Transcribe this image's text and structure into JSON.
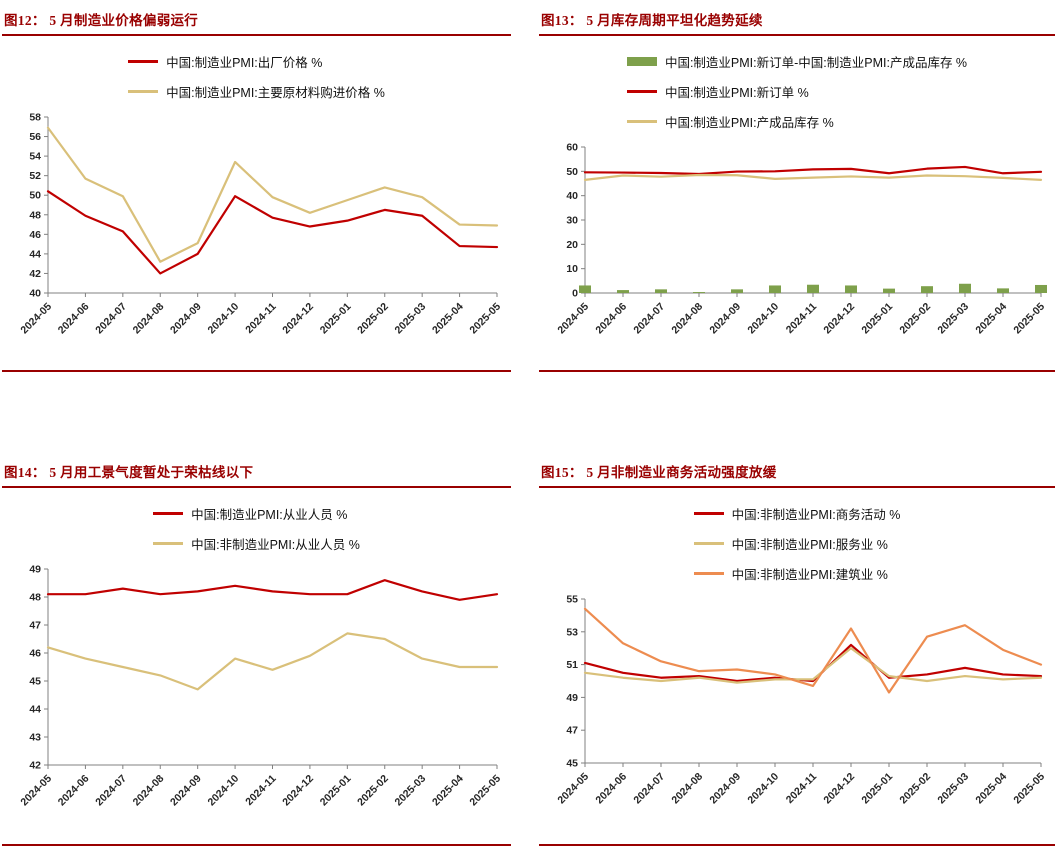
{
  "page": {
    "background": "#ffffff",
    "accent_red": "#990000",
    "axis_color": "#808080"
  },
  "chart_data": [
    {
      "type": "line",
      "title": "图12：  5 月制造业价格偏弱运行",
      "categories": [
        "2024-05",
        "2024-06",
        "2024-07",
        "2024-08",
        "2024-09",
        "2024-10",
        "2024-11",
        "2024-12",
        "2025-01",
        "2025-02",
        "2025-03",
        "2025-04",
        "2025-05"
      ],
      "series": [
        {
          "name": "中国:制造业PMI:出厂价格 %",
          "type": "line",
          "color": "#C00000",
          "values": [
            50.4,
            47.9,
            46.3,
            42.0,
            44.0,
            49.9,
            47.7,
            46.8,
            47.4,
            48.5,
            47.9,
            44.8,
            44.7
          ]
        },
        {
          "name": "中国:制造业PMI:主要原材料购进价格 %",
          "type": "line",
          "color": "#D9C07A",
          "values": [
            56.9,
            51.7,
            49.9,
            43.2,
            45.1,
            53.4,
            49.8,
            48.2,
            49.5,
            50.8,
            49.8,
            47.0,
            46.9
          ]
        }
      ],
      "ylim": [
        40,
        58
      ],
      "ytick": 2,
      "grid": false,
      "legend_position": "top"
    },
    {
      "type": "bar",
      "title": "图13：  5 月库存周期平坦化趋势延续",
      "categories": [
        "2024-05",
        "2024-06",
        "2024-07",
        "2024-08",
        "2024-09",
        "2024-10",
        "2024-11",
        "2024-12",
        "2025-01",
        "2025-02",
        "2025-03",
        "2025-04",
        "2025-05"
      ],
      "series": [
        {
          "name": "中国:制造业PMI:新订单-中国:制造业PMI:产成品库存 %",
          "type": "bar",
          "color": "#7EA04B",
          "values": [
            3.1,
            1.2,
            1.5,
            0.4,
            1.5,
            3.1,
            3.4,
            3.1,
            1.8,
            2.8,
            3.8,
            1.9,
            3.3
          ]
        },
        {
          "name": "中国:制造业PMI:新订单 %",
          "type": "line",
          "color": "#C00000",
          "values": [
            49.6,
            49.5,
            49.3,
            48.9,
            49.9,
            50.0,
            50.8,
            51.0,
            49.2,
            51.1,
            51.8,
            49.2,
            49.8
          ]
        },
        {
          "name": "中国:制造业PMI:产成品库存 %",
          "type": "line",
          "color": "#D9C07A",
          "values": [
            46.5,
            48.3,
            47.8,
            48.5,
            48.4,
            46.9,
            47.4,
            47.9,
            47.4,
            48.3,
            48.0,
            47.3,
            46.5
          ]
        }
      ],
      "ylim": [
        0,
        60
      ],
      "ytick": 10,
      "grid": false,
      "legend_position": "top"
    },
    {
      "type": "line",
      "title": "图14：  5 月用工景气度暂处于荣枯线以下",
      "categories": [
        "2024-05",
        "2024-06",
        "2024-07",
        "2024-08",
        "2024-09",
        "2024-10",
        "2024-11",
        "2024-12",
        "2025-01",
        "2025-02",
        "2025-03",
        "2025-04",
        "2025-05"
      ],
      "series": [
        {
          "name": "中国:制造业PMI:从业人员 %",
          "type": "line",
          "color": "#C00000",
          "values": [
            48.1,
            48.1,
            48.3,
            48.1,
            48.2,
            48.4,
            48.2,
            48.1,
            48.1,
            48.6,
            48.2,
            47.9,
            48.1
          ]
        },
        {
          "name": "中国:非制造业PMI:从业人员 %",
          "type": "line",
          "color": "#D9C07A",
          "values": [
            46.2,
            45.8,
            45.5,
            45.2,
            44.7,
            45.8,
            45.4,
            45.9,
            46.7,
            46.5,
            45.8,
            45.5,
            45.5
          ]
        }
      ],
      "ylim": [
        42,
        49
      ],
      "ytick": 1,
      "grid": false,
      "legend_position": "top"
    },
    {
      "type": "line",
      "title": "图15：  5 月非制造业商务活动强度放缓",
      "categories": [
        "2024-05",
        "2024-06",
        "2024-07",
        "2024-08",
        "2024-09",
        "2024-10",
        "2024-11",
        "2024-12",
        "2025-01",
        "2025-02",
        "2025-03",
        "2025-04",
        "2025-05"
      ],
      "series": [
        {
          "name": "中国:非制造业PMI:商务活动 %",
          "type": "line",
          "color": "#C00000",
          "values": [
            51.1,
            50.5,
            50.2,
            50.3,
            50.0,
            50.2,
            50.0,
            52.2,
            50.2,
            50.4,
            50.8,
            50.4,
            50.3
          ]
        },
        {
          "name": "中国:非制造业PMI:服务业 %",
          "type": "line",
          "color": "#D9C07A",
          "values": [
            50.5,
            50.2,
            50.0,
            50.2,
            49.9,
            50.1,
            50.1,
            52.0,
            50.3,
            50.0,
            50.3,
            50.1,
            50.2
          ]
        },
        {
          "name": "中国:非制造业PMI:建筑业 %",
          "type": "line",
          "color": "#ED8C50",
          "values": [
            54.4,
            52.3,
            51.2,
            50.6,
            50.7,
            50.4,
            49.7,
            53.2,
            49.3,
            52.7,
            53.4,
            51.9,
            51.0
          ]
        }
      ],
      "ylim": [
        45,
        55
      ],
      "ytick": 2,
      "grid": false,
      "legend_position": "top"
    }
  ]
}
